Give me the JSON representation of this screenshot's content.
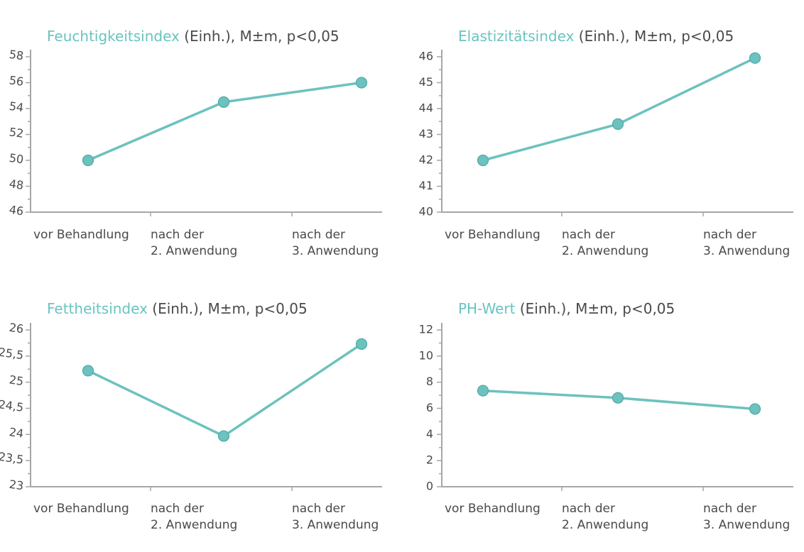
{
  "colors": {
    "accent": "#69c4c0",
    "text": "#4a4a4a",
    "axis": "#a6a6a6"
  },
  "chart_data": [
    {
      "type": "line",
      "title_accent": "Feuchtigkeitsindex",
      "title_rest": " (Einh.), M±m, p<0,05",
      "categories": [
        [
          "vor Behandlung"
        ],
        [
          "nach der",
          "2. Anwendung"
        ],
        [
          "nach der",
          "3. Anwendung"
        ]
      ],
      "values": [
        50,
        54.5,
        56
      ],
      "ylim": [
        46,
        58
      ],
      "ticks": [
        46,
        48,
        50,
        52,
        54,
        56,
        58
      ],
      "tick_labels": [
        "46",
        "48",
        "50",
        "52",
        "54",
        "56",
        "58"
      ],
      "rotated_ticks": true
    },
    {
      "type": "line",
      "title_accent": "Elastizitätsindex",
      "title_rest": " (Einh.), M±m, p<0,05",
      "categories": [
        [
          "vor Behandlung"
        ],
        [
          "nach der",
          "2. Anwendung"
        ],
        [
          "nach der",
          "3. Anwendung"
        ]
      ],
      "values": [
        42,
        43.4,
        45.95
      ],
      "ylim": [
        40,
        46
      ],
      "ticks": [
        40,
        41,
        42,
        43,
        44,
        45,
        46
      ],
      "tick_labels": [
        "40",
        "41",
        "42",
        "43",
        "44",
        "45",
        "46"
      ],
      "rotated_ticks": false
    },
    {
      "type": "line",
      "title_accent": "Fettheitsindex",
      "title_rest": " (Einh.), M±m, p<0,05",
      "categories": [
        [
          "vor Behandlung"
        ],
        [
          "nach der",
          "2. Anwendung"
        ],
        [
          "nach der",
          "3. Anwendung"
        ]
      ],
      "values": [
        25.22,
        23.97,
        25.73
      ],
      "ylim": [
        23,
        26
      ],
      "ticks": [
        23,
        23.5,
        24,
        24.5,
        25,
        25.5,
        26
      ],
      "tick_labels": [
        "23",
        "23,5",
        "24",
        "24,5",
        "25",
        "25,5",
        "26"
      ],
      "rotated_ticks": true
    },
    {
      "type": "line",
      "title_accent": "PH-Wert",
      "title_rest": " (Einh.), M±m, p<0,05",
      "categories": [
        [
          "vor Behandlung"
        ],
        [
          "nach der",
          "2. Anwendung"
        ],
        [
          "nach der",
          "3. Anwendung"
        ]
      ],
      "values": [
        7.35,
        6.8,
        5.95
      ],
      "ylim": [
        0,
        12
      ],
      "ticks": [
        0,
        2,
        4,
        6,
        8,
        10,
        12
      ],
      "tick_labels": [
        "0",
        "2",
        "4",
        "6",
        "8",
        "10",
        "12"
      ],
      "rotated_ticks": false
    }
  ]
}
